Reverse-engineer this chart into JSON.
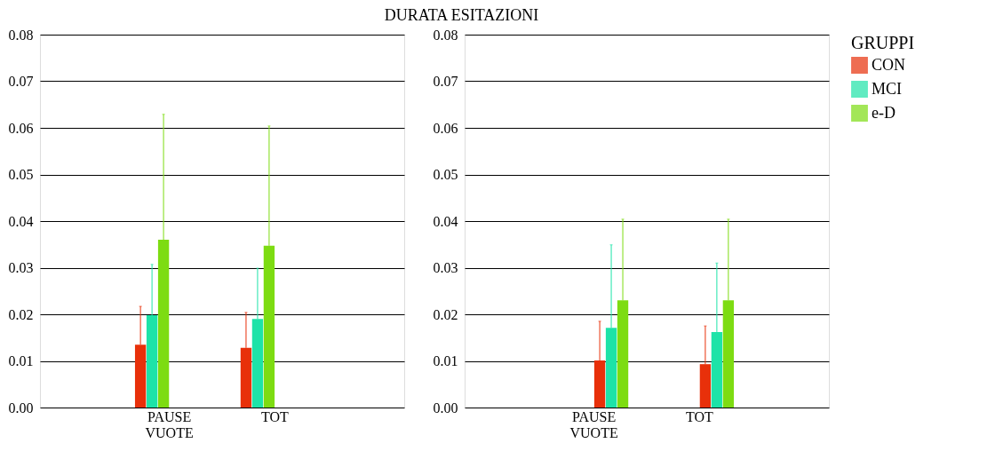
{
  "chart_data": [
    {
      "type": "bar",
      "title": "DURATA ESITAZIONI",
      "categories": [
        "PAUSE VUOTE",
        "TOT"
      ],
      "ylim": [
        0,
        0.08
      ],
      "yticks": [
        {
          "value": 0,
          "label": "0.00"
        },
        {
          "value": 0.01,
          "label": "0.01"
        },
        {
          "value": 0.02,
          "label": "0.02"
        },
        {
          "value": 0.03,
          "label": "0.03"
        },
        {
          "value": 0.04,
          "label": "0.04"
        },
        {
          "value": 0.05,
          "label": "0.05"
        },
        {
          "value": 0.06,
          "label": "0.06"
        },
        {
          "value": 0.07,
          "label": "0.07"
        },
        {
          "value": 0.08,
          "label": "0.08"
        }
      ],
      "grid": "y",
      "legend": false,
      "series": [
        {
          "color": "#e8300a",
          "values": [
            0.0135,
            0.0128
          ],
          "errors": [
            [
              0.0135,
              0.0217
            ],
            [
              0.0128,
              0.0204
            ]
          ]
        },
        {
          "color": "#1de3a8",
          "values": [
            0.0198,
            0.019
          ],
          "errors": [
            [
              0.0198,
              0.0307
            ],
            [
              0.019,
              0.0299
            ]
          ]
        },
        {
          "color": "#7ddc12",
          "values": [
            0.036,
            0.0347
          ],
          "errors": [
            [
              0.036,
              0.0629
            ],
            [
              0.0347,
              0.0604
            ]
          ]
        }
      ]
    },
    {
      "type": "bar",
      "legend_title": "GRUPPI",
      "categories": [
        "PAUSE VUOTE",
        "TOT"
      ],
      "ylim": [
        0,
        0.08
      ],
      "yticks": [
        {
          "value": 0,
          "label": "0.00"
        },
        {
          "value": 0.01,
          "label": "0.01"
        },
        {
          "value": 0.02,
          "label": "0.02"
        },
        {
          "value": 0.03,
          "label": "0.03"
        },
        {
          "value": 0.04,
          "label": "0.04"
        },
        {
          "value": 0.05,
          "label": "0.05"
        },
        {
          "value": 0.06,
          "label": "0.06"
        },
        {
          "value": 0.07,
          "label": "0.07"
        },
        {
          "value": 0.08,
          "label": "0.08"
        }
      ],
      "grid": "y",
      "legend": "right",
      "series": [
        {
          "name": "CON",
          "color": "#e8300a",
          "values": [
            0.0101,
            0.0093
          ],
          "errors": [
            [
              0.0101,
              0.0185
            ],
            [
              0.0093,
              0.0175
            ]
          ]
        },
        {
          "name": "MCI",
          "color": "#1de3a8",
          "values": [
            0.0171,
            0.0162
          ],
          "errors": [
            [
              0.0171,
              0.0349
            ],
            [
              0.0162,
              0.031
            ]
          ]
        },
        {
          "name": "e-D",
          "color": "#7ddc12",
          "values": [
            0.023,
            0.023
          ],
          "errors": [
            [
              0.023,
              0.0404
            ],
            [
              0.023,
              0.0404
            ]
          ]
        }
      ]
    }
  ]
}
